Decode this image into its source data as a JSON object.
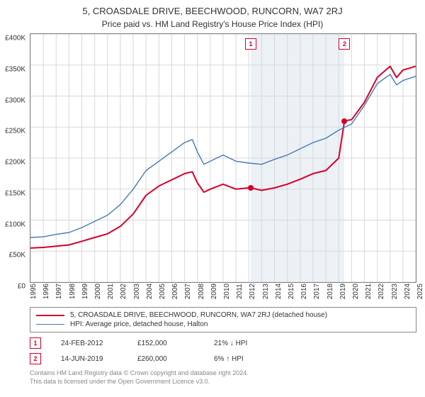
{
  "title": "5, CROASDALE DRIVE, BEECHWOOD, RUNCORN, WA7 2RJ",
  "subtitle": "Price paid vs. HM Land Registry's House Price Index (HPI)",
  "chart": {
    "type": "line",
    "background_color": "#ffffff",
    "grid_color": "#d8d8d8",
    "border_color": "#808080",
    "ylim": [
      0,
      400000
    ],
    "ytick_step": 50000,
    "yticks": [
      "£0",
      "£50K",
      "£100K",
      "£150K",
      "£200K",
      "£250K",
      "£300K",
      "£350K",
      "£400K"
    ],
    "xlim": [
      1995,
      2025
    ],
    "xticks": [
      1995,
      1996,
      1997,
      1998,
      1999,
      2000,
      2001,
      2002,
      2003,
      2004,
      2005,
      2006,
      2007,
      2008,
      2009,
      2010,
      2011,
      2012,
      2013,
      2014,
      2015,
      2016,
      2017,
      2018,
      2019,
      2020,
      2021,
      2022,
      2023,
      2024,
      2025
    ],
    "shade_band": {
      "from": 2012.15,
      "to": 2019.45,
      "color": "#dce5ef"
    },
    "series": [
      {
        "name": "price_paid",
        "color": "#d4002a",
        "line_width": 2,
        "points": [
          [
            1995,
            55000
          ],
          [
            1996,
            56000
          ],
          [
            1997,
            58000
          ],
          [
            1998,
            60000
          ],
          [
            1999,
            66000
          ],
          [
            2000,
            72000
          ],
          [
            2001,
            78000
          ],
          [
            2002,
            90000
          ],
          [
            2003,
            110000
          ],
          [
            2004,
            140000
          ],
          [
            2005,
            155000
          ],
          [
            2006,
            165000
          ],
          [
            2007,
            175000
          ],
          [
            2007.6,
            178000
          ],
          [
            2008,
            160000
          ],
          [
            2008.5,
            145000
          ],
          [
            2009,
            150000
          ],
          [
            2010,
            158000
          ],
          [
            2011,
            150000
          ],
          [
            2012,
            152000
          ],
          [
            2012.15,
            152000
          ],
          [
            2013,
            148000
          ],
          [
            2014,
            152000
          ],
          [
            2015,
            158000
          ],
          [
            2016,
            166000
          ],
          [
            2017,
            175000
          ],
          [
            2018,
            180000
          ],
          [
            2019,
            200000
          ],
          [
            2019.45,
            260000
          ],
          [
            2020,
            262000
          ],
          [
            2021,
            290000
          ],
          [
            2022,
            330000
          ],
          [
            2023,
            348000
          ],
          [
            2023.5,
            330000
          ],
          [
            2024,
            342000
          ],
          [
            2025,
            348000
          ]
        ]
      },
      {
        "name": "hpi",
        "color": "#4a78b5",
        "line_width": 1.4,
        "points": [
          [
            1995,
            72000
          ],
          [
            1996,
            73000
          ],
          [
            1997,
            77000
          ],
          [
            1998,
            80000
          ],
          [
            1999,
            88000
          ],
          [
            2000,
            98000
          ],
          [
            2001,
            108000
          ],
          [
            2002,
            125000
          ],
          [
            2003,
            150000
          ],
          [
            2004,
            180000
          ],
          [
            2005,
            195000
          ],
          [
            2006,
            210000
          ],
          [
            2007,
            225000
          ],
          [
            2007.6,
            230000
          ],
          [
            2008,
            210000
          ],
          [
            2008.5,
            190000
          ],
          [
            2009,
            195000
          ],
          [
            2010,
            205000
          ],
          [
            2011,
            195000
          ],
          [
            2012,
            192000
          ],
          [
            2013,
            190000
          ],
          [
            2014,
            198000
          ],
          [
            2015,
            205000
          ],
          [
            2016,
            215000
          ],
          [
            2017,
            225000
          ],
          [
            2018,
            232000
          ],
          [
            2019,
            245000
          ],
          [
            2020,
            255000
          ],
          [
            2021,
            285000
          ],
          [
            2022,
            320000
          ],
          [
            2023,
            335000
          ],
          [
            2023.5,
            318000
          ],
          [
            2024,
            325000
          ],
          [
            2025,
            332000
          ]
        ]
      }
    ],
    "sale_markers": [
      {
        "num": "1",
        "x": 2012.15,
        "y": 152000,
        "color": "#d4002a"
      },
      {
        "num": "2",
        "x": 2019.45,
        "y": 260000,
        "color": "#d4002a"
      }
    ]
  },
  "legend": {
    "items": [
      {
        "color": "#d4002a",
        "width": 2,
        "label": "5, CROASDALE DRIVE, BEECHWOOD, RUNCORN, WA7 2RJ (detached house)"
      },
      {
        "color": "#4a78b5",
        "width": 1.4,
        "label": "HPI: Average price, detached house, Halton"
      }
    ]
  },
  "transactions": [
    {
      "num": "1",
      "color": "#d4002a",
      "date": "24-FEB-2012",
      "price": "£152,000",
      "delta": "21% ↓ HPI"
    },
    {
      "num": "2",
      "color": "#d4002a",
      "date": "14-JUN-2019",
      "price": "£260,000",
      "delta": "6% ↑ HPI"
    }
  ],
  "footer": {
    "line1": "Contains HM Land Registry data © Crown copyright and database right 2024.",
    "line2": "This data is licensed under the Open Government Licence v3.0."
  }
}
